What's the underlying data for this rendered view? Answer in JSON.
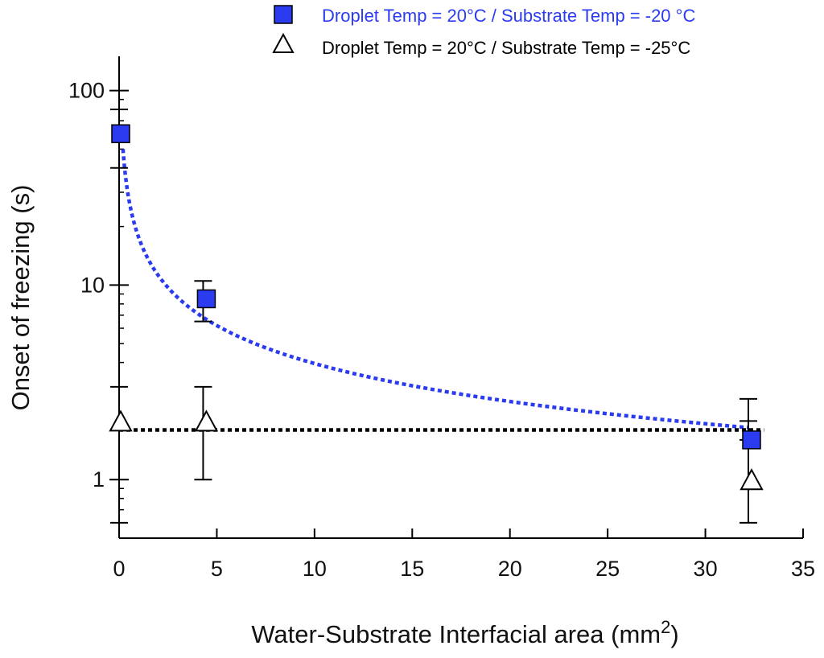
{
  "chart_data": {
    "type": "scatter",
    "title": "",
    "xlabel": "Water-Substrate Interfacial area (mm",
    "xlabel_superscript": "2",
    "xlabel_suffix": ")",
    "ylabel": "Onset of freezing (s)",
    "xlim": [
      0,
      35
    ],
    "ylim": [
      0.5,
      150
    ],
    "yscale": "log",
    "x_ticks": [
      0,
      5,
      10,
      15,
      20,
      25,
      30,
      35
    ],
    "x_tick_labels": [
      "0",
      "5",
      "10",
      "15",
      "20",
      "25",
      "30",
      "35"
    ],
    "y_ticks": [
      1,
      10,
      100
    ],
    "y_tick_labels": [
      "1",
      "10",
      "100"
    ],
    "grid": false,
    "legend_position": "top-right",
    "series": [
      {
        "name": "Droplet Temp = 20°C / Substrate Temp = -20 °C",
        "marker": "square",
        "color": "#2b3cf0",
        "x": [
          0,
          4.3,
          32.2
        ],
        "y": [
          60,
          8.5,
          1.6
        ],
        "err_low": [
          40,
          6.5,
          1.6
        ],
        "err_high": [
          80,
          10.5,
          2.6
        ]
      },
      {
        "name": "Droplet Temp = 20°C / Substrate Temp = -25°C",
        "marker": "triangle-open",
        "color": "#000000",
        "x": [
          0,
          4.3,
          32.2
        ],
        "y": [
          2,
          2,
          1
        ],
        "err_low": [
          0.6,
          1,
          0.6
        ],
        "err_high": [
          3,
          3,
          2
        ]
      }
    ],
    "fits": [
      {
        "series": "Droplet Temp = 20°C / Substrate Temp = -20 °C",
        "style": "dotted",
        "color": "#2b3cf0",
        "form": "power",
        "x_range": [
          0.2,
          32.2
        ],
        "y_at_x_start": 50,
        "y_at_x_end": 1.85
      },
      {
        "series": "Droplet Temp = 20°C / Substrate Temp = -25°C",
        "style": "dotted",
        "color": "#000000",
        "form": "constant",
        "x_range": [
          0,
          33
        ],
        "y": 1.8
      }
    ]
  }
}
